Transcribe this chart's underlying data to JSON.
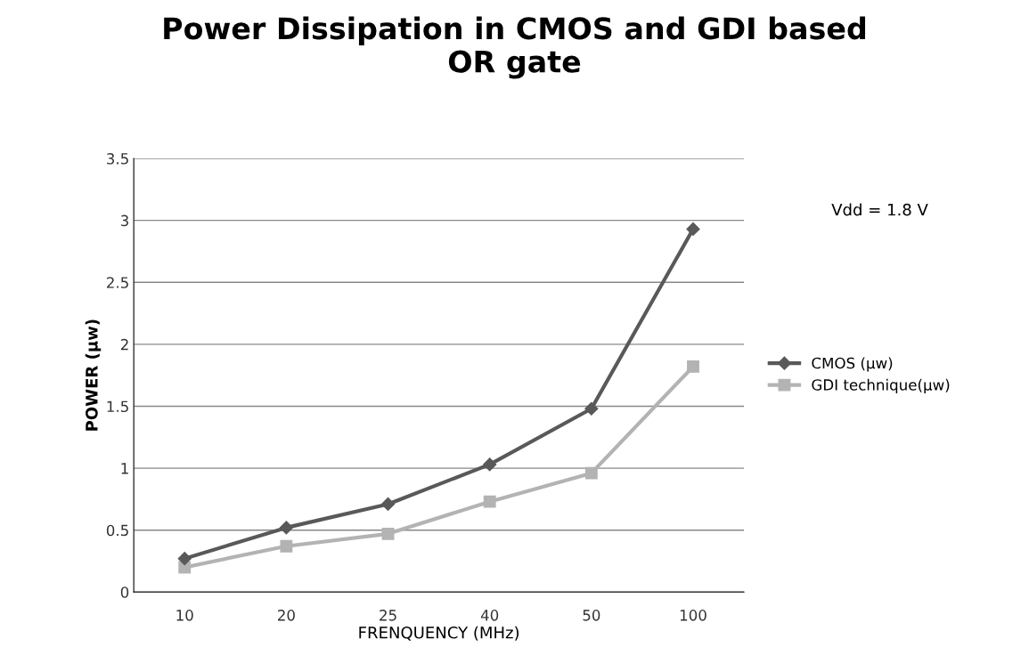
{
  "chart_data": {
    "type": "line",
    "title": "Power Dissipation in CMOS and GDI based\nOR gate",
    "xlabel": "FRENQUENCY (MHz)",
    "ylabel": "POWER (µw)",
    "categories": [
      "10",
      "20",
      "25",
      "40",
      "50",
      "100"
    ],
    "series": [
      {
        "name": "CMOS (µw)",
        "color": "#595959",
        "marker": "diamond",
        "values": [
          0.27,
          0.52,
          0.71,
          1.03,
          1.48,
          2.93
        ]
      },
      {
        "name": "GDI technique(µw)",
        "color": "#b3b3b3",
        "marker": "square",
        "values": [
          0.2,
          0.37,
          0.47,
          0.73,
          0.96,
          1.82
        ]
      }
    ],
    "ylim": [
      0,
      3.5
    ],
    "yticks": [
      0,
      0.5,
      1,
      1.5,
      2,
      2.5,
      3,
      3.5
    ],
    "grid": "y",
    "legend": "right",
    "annotations": [
      "Vdd = 1.8 V"
    ]
  }
}
